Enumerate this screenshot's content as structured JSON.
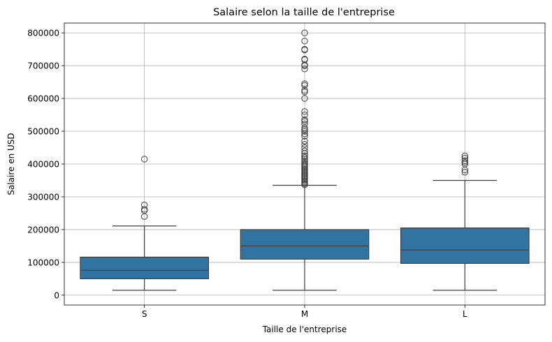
{
  "chart_data": {
    "type": "box",
    "title": "Salaire selon la taille de l'entreprise",
    "xlabel": "Taille de l'entreprise",
    "ylabel": "Salaire en USD",
    "categories": [
      "S",
      "M",
      "L"
    ],
    "ylim": [
      -30000,
      830000
    ],
    "yticks": [
      0,
      100000,
      200000,
      300000,
      400000,
      500000,
      600000,
      700000,
      800000
    ],
    "ytick_labels": [
      "0",
      "100000",
      "200000",
      "300000",
      "400000",
      "500000",
      "600000",
      "700000",
      "800000"
    ],
    "grid": true,
    "box_color": "#3274a1",
    "line_color": "#3f3f3f",
    "boxes": [
      {
        "category": "S",
        "whisker_low": 15000,
        "q1": 50000,
        "median": 76000,
        "q3": 116000,
        "whisker_high": 211000,
        "outliers": [
          415000,
          275000,
          262000,
          258000,
          240000
        ]
      },
      {
        "category": "M",
        "whisker_low": 15000,
        "q1": 110000,
        "median": 150000,
        "q3": 200000,
        "whisker_high": 335000,
        "outliers": [
          800000,
          775000,
          750000,
          748000,
          720000,
          718000,
          702000,
          700000,
          690000,
          645000,
          640000,
          625000,
          620000,
          600000,
          560000,
          550000,
          535000,
          530000,
          522000,
          510000,
          505000,
          500000,
          492000,
          485000,
          470000,
          460000,
          450000,
          440000,
          432000,
          425000,
          420000,
          415000,
          410000,
          405000,
          400000,
          396000,
          392000,
          388000,
          384000,
          380000,
          376000,
          372000,
          368000,
          364000,
          360000,
          356000,
          352000,
          348000,
          344000,
          340000,
          337000
        ]
      },
      {
        "category": "L",
        "whisker_low": 15000,
        "q1": 97000,
        "median": 138000,
        "q3": 205000,
        "whisker_high": 350000,
        "outliers": [
          425000,
          418000,
          410000,
          405000,
          400000,
          382000,
          375000
        ]
      }
    ]
  }
}
